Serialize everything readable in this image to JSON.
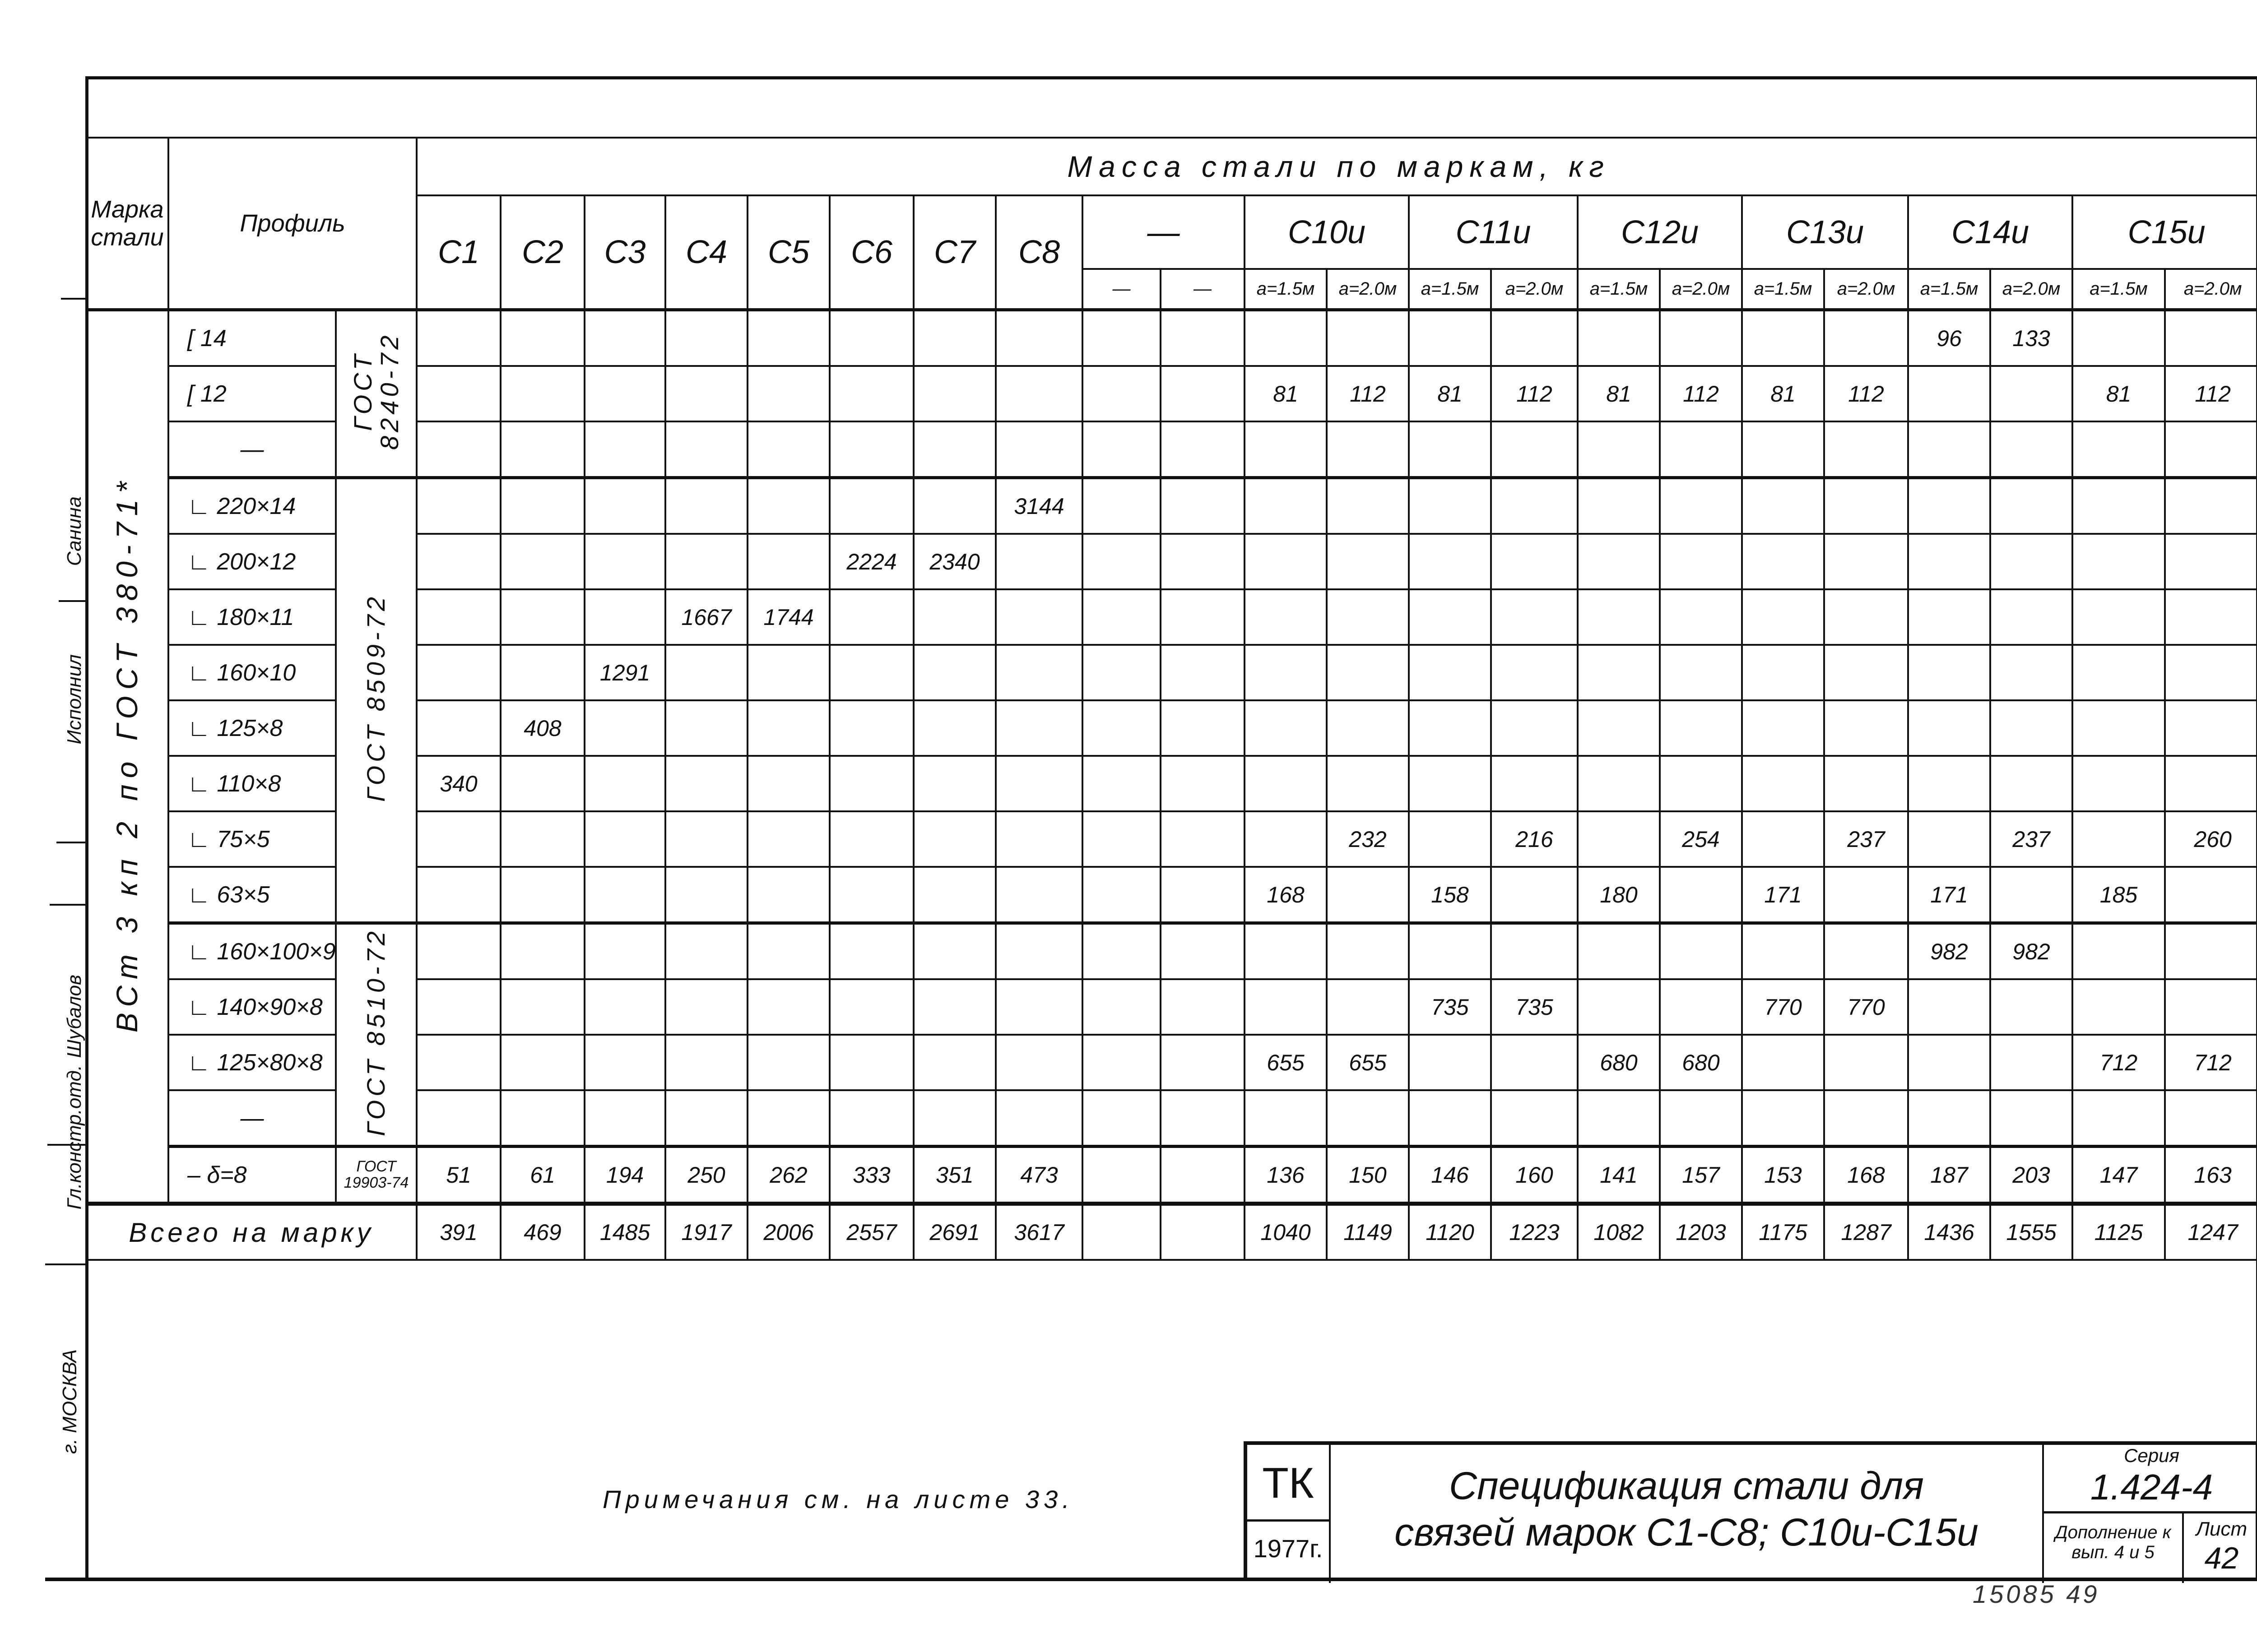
{
  "header": {
    "marka_label": "Марка стали",
    "profile_label": "Профиль",
    "mass_label": "Масса стали по маркам, кг"
  },
  "groups": [
    {
      "label": "С1",
      "span": 1
    },
    {
      "label": "С2",
      "span": 1
    },
    {
      "label": "С3",
      "span": 1
    },
    {
      "label": "С4",
      "span": 1
    },
    {
      "label": "С5",
      "span": 1
    },
    {
      "label": "С6",
      "span": 1
    },
    {
      "label": "С7",
      "span": 1
    },
    {
      "label": "С8",
      "span": 1
    },
    {
      "label": "—",
      "span": 2,
      "subs": [
        "—",
        "—"
      ]
    },
    {
      "label": "С10и",
      "span": 2,
      "subs": [
        "a=1.5м",
        "a=2.0м"
      ]
    },
    {
      "label": "С11и",
      "span": 2,
      "subs": [
        "a=1.5м",
        "a=2.0м"
      ]
    },
    {
      "label": "С12и",
      "span": 2,
      "subs": [
        "a=1.5м",
        "a=2.0м"
      ]
    },
    {
      "label": "С13и",
      "span": 2,
      "subs": [
        "a=1.5м",
        "a=2.0м"
      ]
    },
    {
      "label": "С14и",
      "span": 2,
      "subs": [
        "a=1.5м",
        "a=2.0м"
      ]
    },
    {
      "label": "С15и",
      "span": 2,
      "subs": [
        "a=1.5м",
        "a=2.0м"
      ]
    }
  ],
  "steel_grade": "ВСт 3 кп 2 по ГОСТ 380-71*",
  "standards": [
    {
      "label": "ГОСТ 8240-72",
      "rows": 3
    },
    {
      "label": "ГОСТ 8509-72",
      "rows": 8
    },
    {
      "label": "ГОСТ 8510-72",
      "rows": 4
    },
    {
      "label": "ГОСТ 19903-74",
      "rows": 1
    }
  ],
  "rows": [
    {
      "profile": "[ 14",
      "values": [
        "",
        "",
        "",
        "",
        "",
        "",
        "",
        "",
        "",
        "",
        "",
        "",
        "",
        "",
        "",
        "",
        "",
        "",
        "96",
        "133",
        "",
        ""
      ]
    },
    {
      "profile": "[ 12",
      "values": [
        "",
        "",
        "",
        "",
        "",
        "",
        "",
        "",
        "",
        "",
        "81",
        "112",
        "81",
        "112",
        "81",
        "112",
        "81",
        "112",
        "",
        "",
        "81",
        "112"
      ]
    },
    {
      "profile": "—",
      "values": [
        "",
        "",
        "",
        "",
        "",
        "",
        "",
        "",
        "",
        "",
        "",
        "",
        "",
        "",
        "",
        "",
        "",
        "",
        "",
        "",
        "",
        ""
      ]
    },
    {
      "profile": "∟ 220×14",
      "values": [
        "",
        "",
        "",
        "",
        "",
        "",
        "",
        "3144",
        "",
        "",
        "",
        "",
        "",
        "",
        "",
        "",
        "",
        "",
        "",
        "",
        "",
        ""
      ]
    },
    {
      "profile": "∟ 200×12",
      "values": [
        "",
        "",
        "",
        "",
        "",
        "2224",
        "2340",
        "",
        "",
        "",
        "",
        "",
        "",
        "",
        "",
        "",
        "",
        "",
        "",
        "",
        "",
        ""
      ]
    },
    {
      "profile": "∟ 180×11",
      "values": [
        "",
        "",
        "",
        "1667",
        "1744",
        "",
        "",
        "",
        "",
        "",
        "",
        "",
        "",
        "",
        "",
        "",
        "",
        "",
        "",
        "",
        "",
        ""
      ]
    },
    {
      "profile": "∟ 160×10",
      "values": [
        "",
        "",
        "1291",
        "",
        "",
        "",
        "",
        "",
        "",
        "",
        "",
        "",
        "",
        "",
        "",
        "",
        "",
        "",
        "",
        "",
        "",
        ""
      ]
    },
    {
      "profile": "∟ 125×8",
      "values": [
        "",
        "408",
        "",
        "",
        "",
        "",
        "",
        "",
        "",
        "",
        "",
        "",
        "",
        "",
        "",
        "",
        "",
        "",
        "",
        "",
        "",
        ""
      ]
    },
    {
      "profile": "∟ 110×8",
      "values": [
        "340",
        "",
        "",
        "",
        "",
        "",
        "",
        "",
        "",
        "",
        "",
        "",
        "",
        "",
        "",
        "",
        "",
        "",
        "",
        "",
        "",
        ""
      ]
    },
    {
      "profile": "∟ 75×5",
      "values": [
        "",
        "",
        "",
        "",
        "",
        "",
        "",
        "",
        "",
        "",
        "",
        "232",
        "",
        "216",
        "",
        "254",
        "",
        "237",
        "",
        "237",
        "",
        "260"
      ]
    },
    {
      "profile": "∟ 63×5",
      "values": [
        "",
        "",
        "",
        "",
        "",
        "",
        "",
        "",
        "",
        "",
        "168",
        "",
        "158",
        "",
        "180",
        "",
        "171",
        "",
        "171",
        "",
        "185",
        ""
      ]
    },
    {
      "profile": "∟ 160×100×9",
      "values": [
        "",
        "",
        "",
        "",
        "",
        "",
        "",
        "",
        "",
        "",
        "",
        "",
        "",
        "",
        "",
        "",
        "",
        "",
        "982",
        "982",
        "",
        ""
      ]
    },
    {
      "profile": "∟ 140×90×8",
      "values": [
        "",
        "",
        "",
        "",
        "",
        "",
        "",
        "",
        "",
        "",
        "",
        "",
        "735",
        "735",
        "",
        "",
        "770",
        "770",
        "",
        "",
        "",
        ""
      ]
    },
    {
      "profile": "∟ 125×80×8",
      "values": [
        "",
        "",
        "",
        "",
        "",
        "",
        "",
        "",
        "",
        "",
        "655",
        "655",
        "",
        "",
        "680",
        "680",
        "",
        "",
        "",
        "",
        "712",
        "712"
      ]
    },
    {
      "profile": "—",
      "values": [
        "",
        "",
        "",
        "",
        "",
        "",
        "",
        "",
        "",
        "",
        "",
        "",
        "",
        "",
        "",
        "",
        "",
        "",
        "",
        "",
        "",
        ""
      ]
    },
    {
      "profile": "– δ=8",
      "values": [
        "51",
        "61",
        "194",
        "250",
        "262",
        "333",
        "351",
        "473",
        "",
        "",
        "136",
        "150",
        "146",
        "160",
        "141",
        "157",
        "153",
        "168",
        "187",
        "203",
        "147",
        "163"
      ]
    }
  ],
  "total": {
    "label": "Всего на марку",
    "values": [
      "391",
      "469",
      "1485",
      "1917",
      "2006",
      "2557",
      "2691",
      "3617",
      "",
      "",
      "1040",
      "1149",
      "1120",
      "1223",
      "1082",
      "1203",
      "1175",
      "1287",
      "1436",
      "1555",
      "1125",
      "1247"
    ]
  },
  "note": "Примечания см. на листе 33.",
  "title_block": {
    "org": "ТК",
    "year": "1977г.",
    "title_line1": "Спецификация стали для",
    "title_line2": "связей марок С1-С8; С10и-С15и",
    "series_label": "Серия",
    "series_value": "1.424-4",
    "addition": "Дополнение к вып. 4 и 5",
    "sheet_label": "Лист",
    "sheet_value": "42"
  },
  "side_stamps": {
    "city": "г. МОСКВА",
    "chief_label": "Гл.констр.отд.",
    "chief_name": "Шубалов",
    "executor_label": "Исполнил",
    "executor_name": "Санина"
  },
  "inventory_number": "15085   49"
}
